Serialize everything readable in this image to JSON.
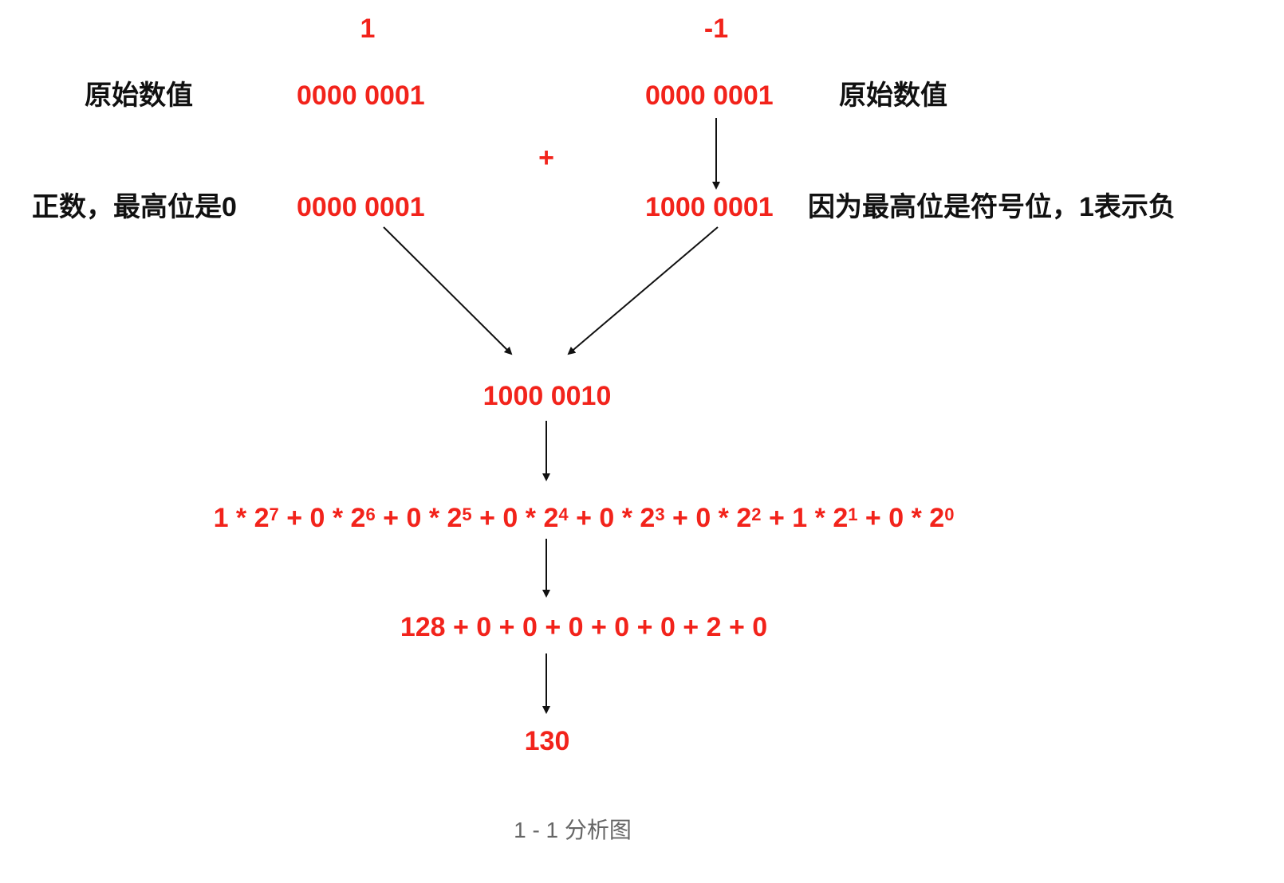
{
  "top_left_value": "1",
  "top_right_value": "-1",
  "left_label": "原始数值",
  "right_label": "原始数值",
  "left_original": "0000 0001",
  "right_original": "0000 0001",
  "plus": "+",
  "left_note": "正数，最高位是0",
  "left_signed": "0000 0001",
  "right_signed": "1000 0001",
  "right_note": "因为最高位是符号位，1表示负",
  "sum_binary": "1000 0010",
  "expansion_terms": [
    {
      "coef": "1",
      "exp": "7"
    },
    {
      "coef": "0",
      "exp": "6"
    },
    {
      "coef": "0",
      "exp": "5"
    },
    {
      "coef": "0",
      "exp": "4"
    },
    {
      "coef": "0",
      "exp": "3"
    },
    {
      "coef": "0",
      "exp": "2"
    },
    {
      "coef": "1",
      "exp": "1"
    },
    {
      "coef": "0",
      "exp": "0"
    }
  ],
  "sum_terms": "128 + 0 + 0 + 0 + 0 + 0 + 2 + 0",
  "result": "130",
  "caption": "1 - 1 分析图",
  "colors": {
    "value": "#f2231b",
    "label": "#111111",
    "caption": "#666666"
  }
}
